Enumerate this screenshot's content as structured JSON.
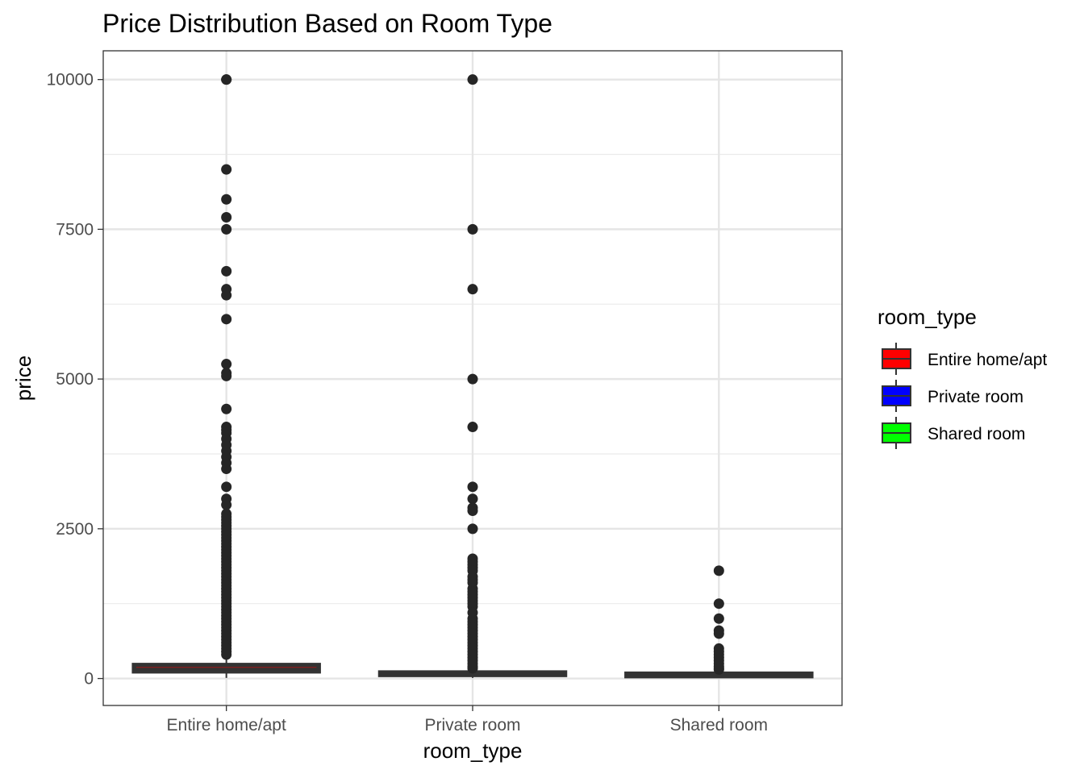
{
  "chart_data": {
    "type": "box",
    "title": "Price Distribution Based on Room Type",
    "xlabel": "room_type",
    "ylabel": "price",
    "ylim": [
      -450,
      10480
    ],
    "y_ticks": [
      0,
      2500,
      5000,
      7500,
      10000
    ],
    "y_tick_labels": [
      "0",
      "2500",
      "5000",
      "7500",
      "10000"
    ],
    "grid": true,
    "theme": "bw",
    "categories": [
      "Entire home/apt",
      "Private room",
      "Shared room"
    ],
    "legend": {
      "title": "room_type",
      "position": "right",
      "entries": [
        {
          "label": "Entire home/apt",
          "color": "#ff0000"
        },
        {
          "label": "Private room",
          "color": "#0000ff"
        },
        {
          "label": "Shared room",
          "color": "#00ff00"
        }
      ]
    },
    "series": [
      {
        "category": "Entire home/apt",
        "fill": "#ff0000",
        "q1": 120,
        "median": 160,
        "q3": 225,
        "whisker_low": 10,
        "whisker_high": 380,
        "outliers": [
          10000,
          10000,
          8500,
          8000,
          7700,
          7500,
          6800,
          6500,
          6400,
          6000,
          5250,
          5100,
          5050,
          4500,
          4200,
          4150,
          4100,
          4000,
          3900,
          3800,
          3700,
          3600,
          3500,
          3200,
          3000,
          2900,
          2750,
          2700,
          2650,
          2600,
          2550,
          2500,
          2450,
          2400,
          2350,
          2300,
          2250,
          2200,
          2150,
          2100,
          2050,
          2000,
          1950,
          1900,
          1850,
          1800,
          1750,
          1700,
          1650,
          1600,
          1550,
          1500,
          1450,
          1400,
          1350,
          1300,
          1250,
          1200,
          1150,
          1100,
          1050,
          1000,
          950,
          900,
          850,
          800,
          750,
          700,
          650,
          600,
          550,
          500,
          450,
          400
        ]
      },
      {
        "category": "Private room",
        "fill": "#0000ff",
        "q1": 60,
        "median": 75,
        "q3": 100,
        "whisker_low": 10,
        "whisker_high": 160,
        "outliers": [
          10000,
          7500,
          6500,
          5000,
          4200,
          3200,
          3000,
          2850,
          2800,
          2500,
          2000,
          1950,
          1900,
          1850,
          1800,
          1700,
          1650,
          1600,
          1500,
          1450,
          1400,
          1350,
          1300,
          1250,
          1200,
          1100,
          1000,
          950,
          900,
          850,
          800,
          750,
          700,
          650,
          600,
          550,
          500,
          450,
          400,
          350,
          300,
          250,
          200,
          170
        ]
      },
      {
        "category": "Shared room",
        "fill": "#00ff00",
        "q1": 40,
        "median": 55,
        "q3": 80,
        "whisker_low": 10,
        "whisker_high": 140,
        "outliers": [
          1800,
          1250,
          1000,
          800,
          750,
          500,
          450,
          400,
          350,
          300,
          250,
          200,
          170,
          150
        ]
      }
    ]
  }
}
